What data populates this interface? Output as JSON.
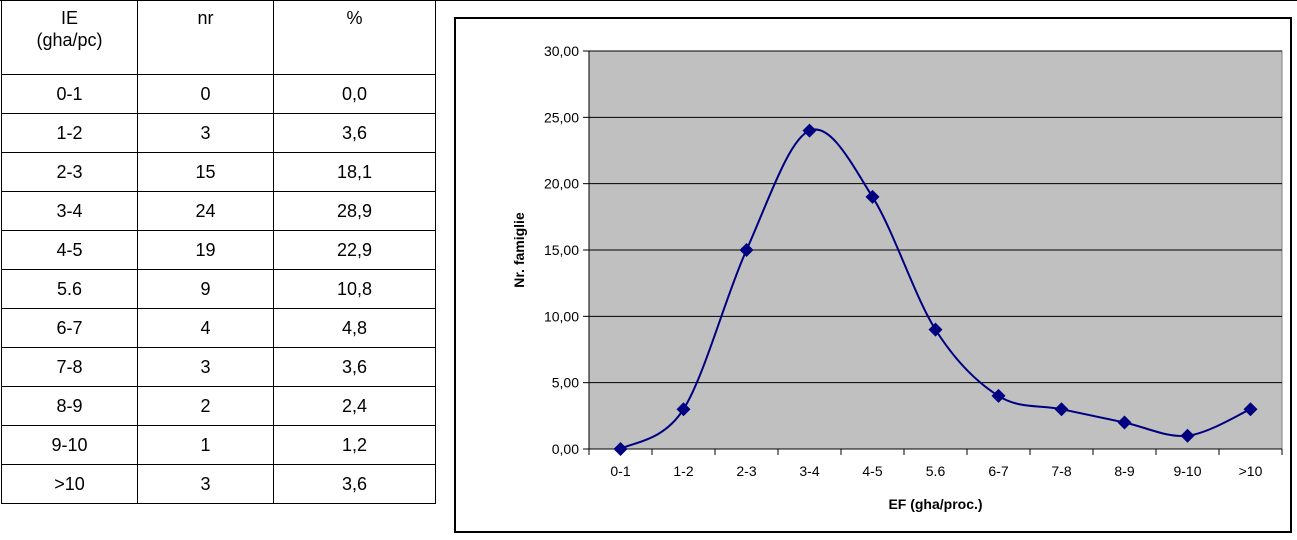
{
  "table": {
    "headers": {
      "ie_line1": "IE",
      "ie_line2": "(gha/pc)",
      "nr": "nr",
      "pct": "%"
    },
    "rows": [
      {
        "range": "0-1",
        "nr": "0",
        "pct": "0,0"
      },
      {
        "range": "1-2",
        "nr": "3",
        "pct": "3,6"
      },
      {
        "range": "2-3",
        "nr": "15",
        "pct": "18,1"
      },
      {
        "range": "3-4",
        "nr": "24",
        "pct": "28,9"
      },
      {
        "range": "4-5",
        "nr": "19",
        "pct": "22,9"
      },
      {
        "range": "5.6",
        "nr": "9",
        "pct": "10,8"
      },
      {
        "range": "6-7",
        "nr": "4",
        "pct": "4,8"
      },
      {
        "range": "7-8",
        "nr": "3",
        "pct": "3,6"
      },
      {
        "range": "8-9",
        "nr": "2",
        "pct": "2,4"
      },
      {
        "range": "9-10",
        "nr": "1",
        "pct": "1,2"
      },
      {
        "range": ">10",
        "nr": "3",
        "pct": "3,6"
      }
    ]
  },
  "chart_data": {
    "type": "line",
    "categories": [
      "0-1",
      "1-2",
      "2-3",
      "3-4",
      "4-5",
      "5.6",
      "6-7",
      "7-8",
      "8-9",
      "9-10",
      ">10"
    ],
    "series": [
      {
        "values": [
          0,
          3,
          15,
          24,
          19,
          9,
          4,
          3,
          2,
          1,
          3
        ]
      }
    ],
    "xlabel": "EF (gha/proc.)",
    "ylabel": "Nr. famiglie",
    "ylim": [
      0,
      30
    ],
    "yticks": [
      "0,00",
      "5,00",
      "10,00",
      "15,00",
      "20,00",
      "25,00",
      "30,00"
    ],
    "smoothed": true,
    "marker": "diamond",
    "grid": true,
    "legend": "none",
    "colors": {
      "plot_bg": "#c0c0c0",
      "line": "#000080",
      "gridline": "#000000"
    }
  }
}
